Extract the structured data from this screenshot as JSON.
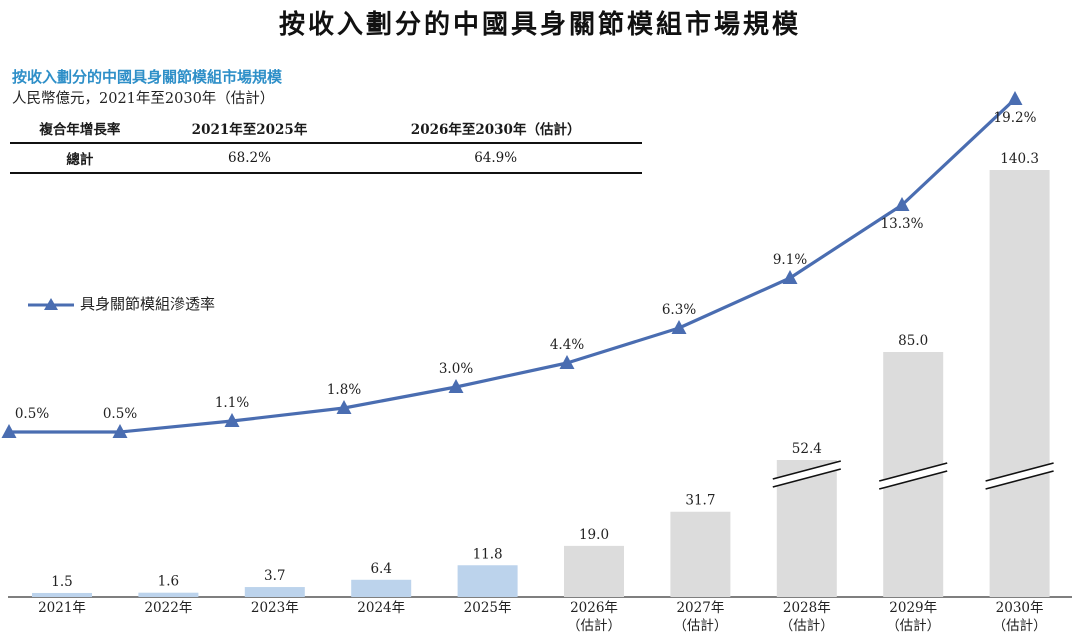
{
  "title": "按收入劃分的中國具身關節模組市場規模",
  "subtitle": "按收入劃分的中國具身關節模組市場規模",
  "unit": "人民幣億元，2021年至2030年（估計）",
  "cagr_table": {
    "headers": [
      "複合年增長率",
      "2021年至2025年",
      "2026年至2030年（估計）"
    ],
    "rows": [
      {
        "label": "總計",
        "values": [
          "68.2%",
          "64.9%"
        ]
      }
    ]
  },
  "legend": {
    "penetration": "具身關節模組滲透率"
  },
  "colors": {
    "actual_bar": "#bcd3ec",
    "forecast_bar": "#dcdcdc",
    "line": "#4a6db1",
    "subtitle": "#2e8fc8"
  },
  "chart_data": {
    "type": "bar",
    "categories": [
      {
        "year": "2021年",
        "note": ""
      },
      {
        "year": "2022年",
        "note": ""
      },
      {
        "year": "2023年",
        "note": ""
      },
      {
        "year": "2024年",
        "note": ""
      },
      {
        "year": "2025年",
        "note": ""
      },
      {
        "year": "2026年",
        "note": "（估計）"
      },
      {
        "year": "2027年",
        "note": "（估計）"
      },
      {
        "year": "2028年",
        "note": "（估計）"
      },
      {
        "year": "2029年",
        "note": "（估計）"
      },
      {
        "year": "2030年",
        "note": "（估計）"
      }
    ],
    "values": [
      1.5,
      1.6,
      3.7,
      6.4,
      11.8,
      19.0,
      31.7,
      52.4,
      85.0,
      140.3
    ],
    "value_labels": [
      "1.5",
      "1.6",
      "3.7",
      "6.4",
      "11.8",
      "19.0",
      "31.7",
      "52.4",
      "85.0",
      "140.3"
    ],
    "forecast_from_index": 5,
    "broken_axis_indices": [
      7,
      8,
      9
    ],
    "line_series": {
      "values": [
        0.5,
        0.5,
        1.1,
        1.8,
        3.0,
        4.4,
        6.3,
        9.1,
        13.3,
        19.2
      ],
      "labels": [
        "0.5%",
        "0.5%",
        "1.1%",
        "1.8%",
        "3.0%",
        "4.4%",
        "6.3%",
        "9.1%",
        "13.3%",
        "19.2%"
      ],
      "marker": "triangle"
    }
  }
}
